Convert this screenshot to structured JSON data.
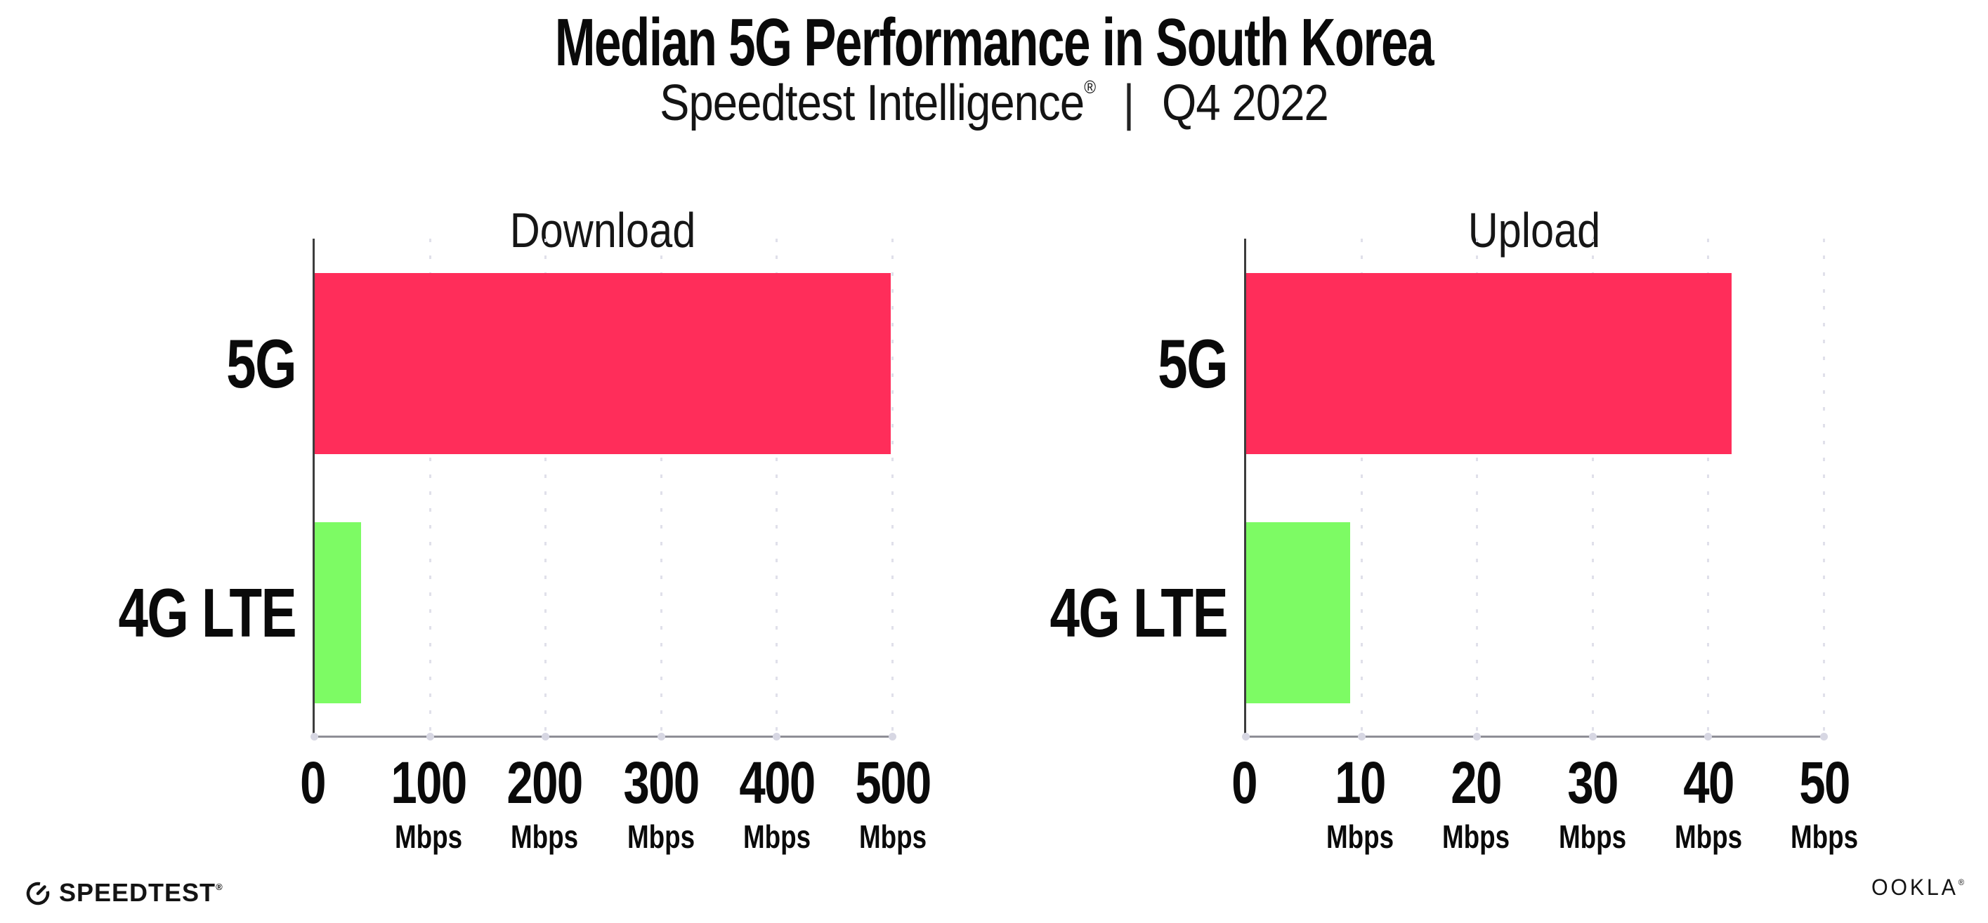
{
  "header": {
    "title": "Median 5G Performance in South Korea",
    "subtitle_brand": "Speedtest Intelligence",
    "subtitle_reg_mark": "®",
    "subtitle_separator": "|",
    "subtitle_period": "Q4 2022"
  },
  "chart_data": [
    {
      "type": "bar",
      "orientation": "horizontal",
      "title": "Download",
      "categories": [
        "5G",
        "4G LTE"
      ],
      "values": [
        498,
        40
      ],
      "unit": "Mbps",
      "xlim": [
        0,
        500
      ],
      "xticks": [
        0,
        100,
        200,
        300,
        400,
        500
      ],
      "tick_unit": "Mbps",
      "bar_colors": [
        "#ff2d5a",
        "#7dfb64"
      ],
      "grid": "dotted vertical gridlines at each tick",
      "legend": "none"
    },
    {
      "type": "bar",
      "orientation": "horizontal",
      "title": "Upload",
      "categories": [
        "5G",
        "4G LTE"
      ],
      "values": [
        42,
        9
      ],
      "unit": "Mbps",
      "xlim": [
        0,
        50
      ],
      "xticks": [
        0,
        10,
        20,
        30,
        40,
        50
      ],
      "tick_unit": "Mbps",
      "bar_colors": [
        "#ff2d5a",
        "#7dfb64"
      ],
      "grid": "dotted vertical gridlines at each tick",
      "legend": "none"
    }
  ],
  "footer": {
    "speedtest_wordmark": "SPEEDTEST",
    "speedtest_reg_mark": "®",
    "ookla_wordmark": "OOKLA",
    "ookla_reg_mark": "®"
  },
  "colors": {
    "bar_5g": "#ff2d5a",
    "bar_4g_lte": "#7dfb64",
    "background": "#ffffff",
    "text": "#0d0d0d",
    "gridline": "#e0e0ea",
    "y_axis": "#3d3d3d",
    "x_axis": "#8e8e96"
  }
}
